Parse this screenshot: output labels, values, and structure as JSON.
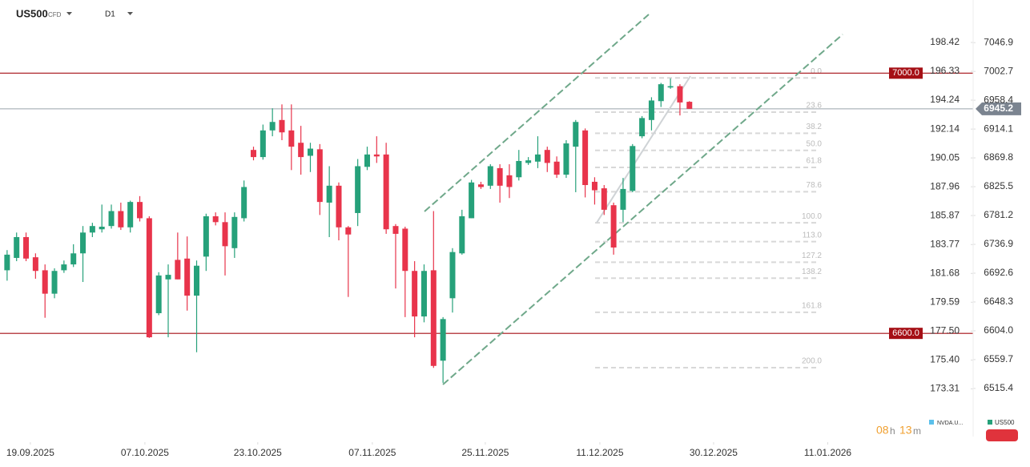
{
  "header": {
    "symbol": "US500",
    "instrument": "CFD",
    "timeframe": "D1"
  },
  "timer": {
    "hours": "08",
    "hours_unit": "h",
    "minutes": "13",
    "minutes_unit": "m"
  },
  "legend": [
    {
      "name": "NVDA.U...",
      "color": "#5bc0eb"
    },
    {
      "name": "US500",
      "color": "#26a17a"
    }
  ],
  "chart_data": {
    "type": "candlestick",
    "up_color": "#26a17a",
    "down_color": "#e8344b",
    "xlim": [
      -0.75,
      95.6
    ],
    "xticks": [
      {
        "value": 2.45,
        "label": "19.09.2025"
      },
      {
        "value": 14.54,
        "label": "07.10.2025"
      },
      {
        "value": 26.45,
        "label": "23.10.2025"
      },
      {
        "value": 38.54,
        "label": "07.11.2025"
      },
      {
        "value": 50.46,
        "label": "25.11.2025"
      },
      {
        "value": 62.55,
        "label": "11.12.2025"
      },
      {
        "value": 74.55,
        "label": "30.12.2025"
      },
      {
        "value": 86.6,
        "label": "11.01.2026"
      }
    ],
    "ylim": [
      6450,
      7110
    ],
    "yticks": [
      7046.9,
      7002.7,
      6958.4,
      6914.1,
      6869.8,
      6825.5,
      6781.2,
      6736.9,
      6692.6,
      6648.3,
      {
        "value": 6604,
        "label": "6604.0"
      },
      6559.7,
      6515.4
    ],
    "y2lim": [
      170.26,
      201.38
    ],
    "y2ticks": [
      198.42,
      196.33,
      194.24,
      192.14,
      190.05,
      187.96,
      185.87,
      183.77,
      181.68,
      179.59,
      {
        "value": 177.5,
        "label": "177.50"
      },
      {
        "value": 175.4,
        "label": "175.40"
      },
      173.31
    ],
    "open": [
      6697,
      6716,
      6748,
      6717,
      6697,
      6661,
      6697,
      6706,
      6723,
      6755,
      6760,
      6765,
      6788,
      6763,
      6802,
      6777,
      6631,
      6683,
      6713,
      6715,
      6658,
      6718,
      6780,
      6771,
      6731,
      6777,
      6882,
      6871,
      6912,
      6928,
      6912,
      6893,
      6873,
      6883,
      6801,
      6827,
      6763,
      6785,
      6856,
      6875,
      6875,
      6765,
      6761,
      6696,
      6626,
      6697,
      6558,
      6654,
      6723,
      6777,
      6829,
      6827,
      6854,
      6843,
      6840,
      6862,
      6864,
      6882,
      6864,
      6844,
      6887,
      6912,
      6833,
      6823,
      6797,
      6790,
      6819,
      6903,
      6928,
      6957,
      6978,
      6980,
      6956
    ],
    "high": [
      6728,
      6755,
      6755,
      6723,
      6706,
      6700,
      6712,
      6737,
      6765,
      6770,
      6798,
      6798,
      6801,
      6804,
      6811,
      6780,
      6694,
      6706,
      6755,
      6749,
      6712,
      6784,
      6786,
      6786,
      6786,
      6835,
      6887,
      6921,
      6946,
      6952,
      6952,
      6919,
      6893,
      6891,
      6857,
      6832,
      6765,
      6868,
      6887,
      6903,
      6893,
      6768,
      6764,
      6711,
      6706,
      6788,
      6625,
      6731,
      6790,
      6836,
      6833,
      6860,
      6860,
      6860,
      6882,
      6871,
      6903,
      6887,
      6872,
      6897,
      6928,
      6915,
      6840,
      6828,
      6801,
      6839,
      6891,
      6934,
      6963,
      6985,
      6992,
      6983,
      6957
    ],
    "low": [
      6681,
      6711,
      6711,
      6684,
      6624,
      6654,
      6693,
      6702,
      6679,
      6748,
      6755,
      6761,
      6759,
      6755,
      6772,
      6593,
      6628,
      6594,
      6683,
      6635,
      6571,
      6696,
      6766,
      6689,
      6716,
      6772,
      6866,
      6867,
      6903,
      6897,
      6851,
      6844,
      6848,
      6782,
      6748,
      6743,
      6656,
      6765,
      6851,
      6862,
      6753,
      6669,
      6625,
      6594,
      6617,
      6547,
      6524,
      6632,
      6721,
      6777,
      6822,
      6822,
      6801,
      6808,
      6835,
      6859,
      6854,
      6848,
      6839,
      6839,
      6817,
      6809,
      6798,
      6782,
      6721,
      6771,
      6817,
      6900,
      6912,
      6948,
      6976,
      6935,
      6945.2
    ],
    "close": [
      6721,
      6748,
      6715,
      6696,
      6661,
      6696,
      6706,
      6723,
      6755,
      6765,
      6764,
      6788,
      6763,
      6802,
      6777,
      6594,
      6689,
      6690,
      6683,
      6658,
      6704,
      6780,
      6771,
      6734,
      6779,
      6825,
      6871,
      6912,
      6925,
      6909,
      6887,
      6871,
      6884,
      6802,
      6827,
      6763,
      6752,
      6857,
      6875,
      6872,
      6760,
      6753,
      6696,
      6626,
      6696,
      6550,
      6622,
      6725,
      6780,
      6832,
      6825,
      6857,
      6827,
      6825,
      6865,
      6866,
      6875,
      6862,
      6844,
      6892,
      6925,
      6828,
      6820,
      6790,
      6732,
      6822,
      6888,
      6931,
      6958,
      6983,
      6980,
      6955,
      6945.2
    ],
    "levels": [
      {
        "value": 7000,
        "label": "7000.0",
        "color": "#a50f15"
      },
      {
        "value": 6600,
        "label": "6600.0",
        "color": "#a50f15"
      }
    ],
    "fibonacci": {
      "high": 6992.7,
      "low": 6770,
      "levels": [
        {
          "value": 0,
          "label": "0.0"
        },
        23.6,
        38.2,
        {
          "value": 50,
          "label": "50.0"
        },
        61.8,
        78.6,
        {
          "value": 100,
          "label": "100.0"
        },
        {
          "value": 113,
          "label": "113.0"
        },
        127.2,
        138.2,
        161.8,
        {
          "value": 200,
          "label": "200.0"
        }
      ]
    }
  }
}
